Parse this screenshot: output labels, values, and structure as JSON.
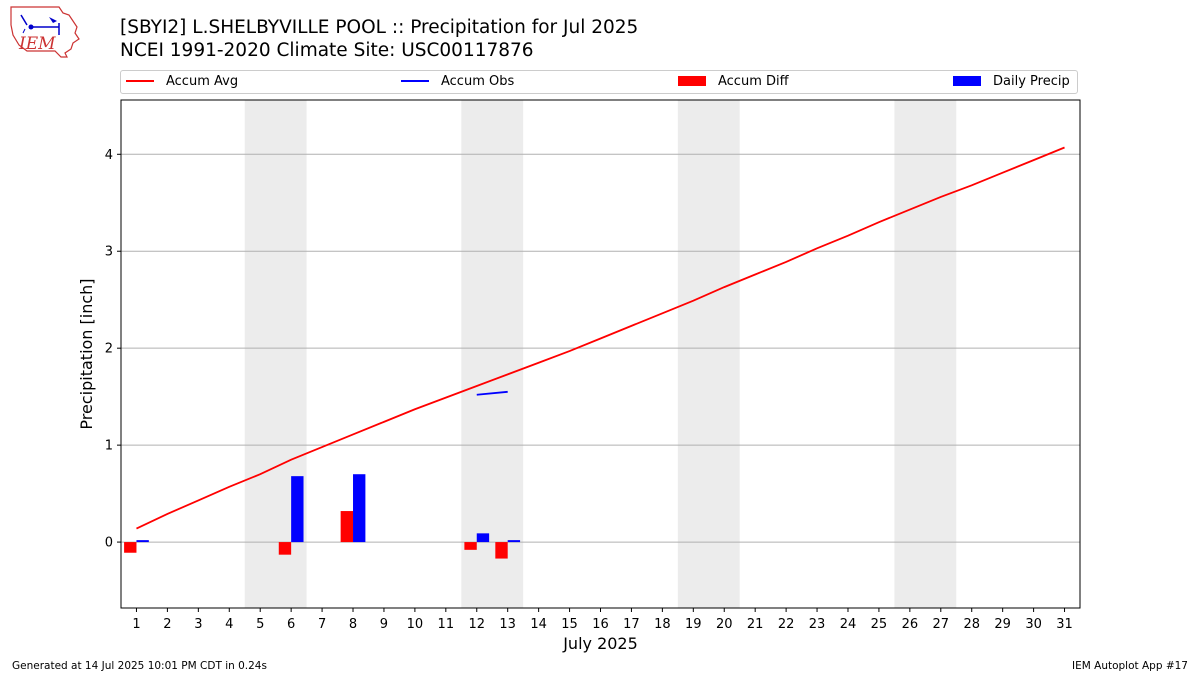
{
  "header": {
    "title_line1": "[SBYI2] L.SHELBYVILLE POOL :: Precipitation for Jul 2025",
    "title_line2": "NCEI 1991-2020 Climate Site: USC00117876"
  },
  "logo": {
    "text": "IEM"
  },
  "footer": {
    "left": "Generated at 14 Jul 2025 10:01 PM CDT in 0.24s",
    "right": "IEM Autoplot App #17"
  },
  "colors": {
    "accum_avg": "#ff0000",
    "accum_obs": "#0000ff",
    "accum_diff": "#ff0000",
    "daily_precip": "#0000ff",
    "weekend_shade": "#ececec",
    "grid": "#b0b0b0"
  },
  "chart_data": {
    "type": "bar",
    "xlabel": "July 2025",
    "ylabel": "Precipitation [inch]",
    "xlim": [
      0.5,
      31.5
    ],
    "ylim": [
      -0.68,
      4.56
    ],
    "grid": true,
    "legend_position": "top",
    "x": [
      1,
      2,
      3,
      4,
      5,
      6,
      7,
      8,
      9,
      10,
      11,
      12,
      13,
      14,
      15,
      16,
      17,
      18,
      19,
      20,
      21,
      22,
      23,
      24,
      25,
      26,
      27,
      28,
      29,
      30,
      31
    ],
    "yticks": [
      0,
      1,
      2,
      3,
      4
    ],
    "weekend_ranges": [
      [
        4.5,
        6.5
      ],
      [
        11.5,
        13.5
      ],
      [
        18.5,
        20.5
      ],
      [
        25.5,
        27.5
      ]
    ],
    "series": [
      {
        "name": "Accum Avg",
        "kind": "line",
        "x": [
          1,
          2,
          3,
          4,
          5,
          6,
          7,
          8,
          9,
          10,
          11,
          12,
          13,
          14,
          15,
          16,
          17,
          18,
          19,
          20,
          21,
          22,
          23,
          24,
          25,
          26,
          27,
          28,
          29,
          30,
          31
        ],
        "values": [
          0.14,
          0.29,
          0.43,
          0.57,
          0.7,
          0.85,
          0.98,
          1.11,
          1.24,
          1.37,
          1.49,
          1.61,
          1.73,
          1.85,
          1.97,
          2.1,
          2.23,
          2.36,
          2.49,
          2.63,
          2.76,
          2.89,
          3.03,
          3.16,
          3.3,
          3.43,
          3.56,
          3.68,
          3.81,
          3.94,
          4.07
        ]
      },
      {
        "name": "Accum Obs",
        "kind": "line",
        "x": [
          12,
          13
        ],
        "values": [
          1.52,
          1.55
        ]
      },
      {
        "name": "Accum Diff",
        "kind": "bar",
        "x": [
          1,
          6,
          8,
          12,
          13
        ],
        "values": [
          -0.11,
          -0.13,
          0.32,
          -0.08,
          -0.17
        ]
      },
      {
        "name": "Daily Precip",
        "kind": "bar",
        "x": [
          1,
          6,
          8,
          12,
          13
        ],
        "values": [
          0.02,
          0.68,
          0.7,
          0.09,
          0.02
        ]
      }
    ]
  }
}
